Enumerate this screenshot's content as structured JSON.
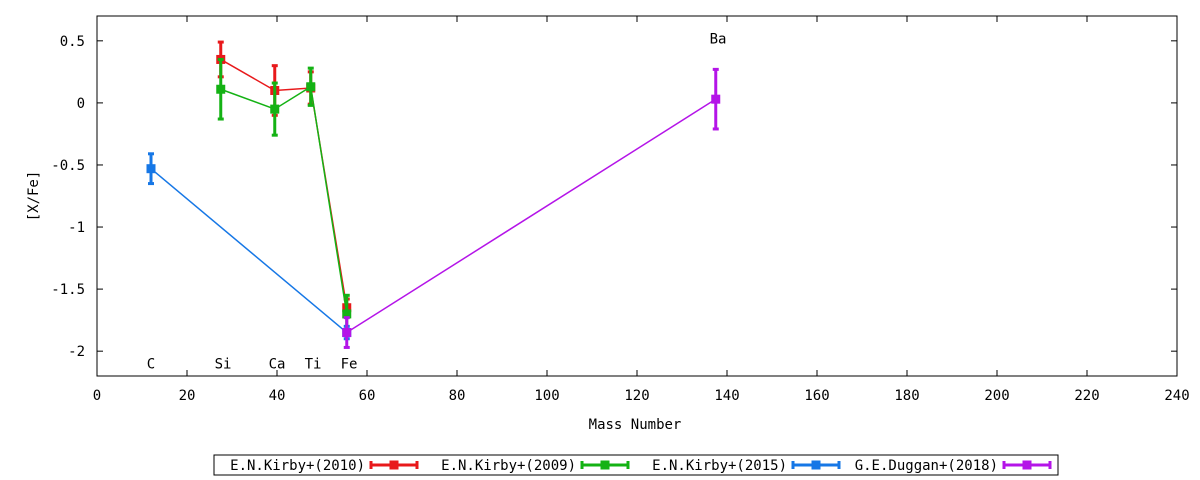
{
  "chart_data": {
    "type": "line",
    "xlabel": "Mass Number",
    "ylabel": "[X/Fe]",
    "xlim": [
      0,
      240
    ],
    "ylim": [
      -2.2,
      0.7
    ],
    "x_ticks": [
      0,
      20,
      40,
      60,
      80,
      100,
      120,
      140,
      160,
      180,
      200,
      220,
      240
    ],
    "y_ticks": [
      0.5,
      0,
      -0.5,
      -1,
      -1.5,
      -2
    ],
    "x_tick_labels": [
      "0",
      "20",
      "40",
      "60",
      "80",
      "100",
      "120",
      "140",
      "160",
      "180",
      "200",
      "220",
      "240"
    ],
    "y_tick_labels": [
      "0.5",
      "0",
      "-0.5",
      "-1",
      "-1.5",
      "-2"
    ],
    "grid": false,
    "legend_position": "bottom",
    "element_labels": [
      {
        "text": "C",
        "x": 12,
        "y": -2.1
      },
      {
        "text": "Si",
        "x": 28,
        "y": -2.1
      },
      {
        "text": "Ca",
        "x": 40,
        "y": -2.1
      },
      {
        "text": "Ti",
        "x": 48,
        "y": -2.1
      },
      {
        "text": "Fe",
        "x": 56,
        "y": -2.1
      },
      {
        "text": "Ba",
        "x": 138,
        "y": 0.52
      }
    ],
    "series": [
      {
        "name": "E.N.Kirby+(2010)",
        "color": "#e8191b",
        "points": [
          {
            "x": 27.5,
            "y": 0.35,
            "err": 0.14
          },
          {
            "x": 39.5,
            "y": 0.1,
            "err": 0.2
          },
          {
            "x": 47.5,
            "y": 0.12,
            "err": 0.13
          },
          {
            "x": 55.5,
            "y": -1.65,
            "err": 0.07
          }
        ]
      },
      {
        "name": "E.N.Kirby+(2009)",
        "color": "#14b214",
        "points": [
          {
            "x": 27.5,
            "y": 0.11,
            "err": 0.24
          },
          {
            "x": 39.5,
            "y": -0.05,
            "err": 0.21
          },
          {
            "x": 47.5,
            "y": 0.13,
            "err": 0.15
          },
          {
            "x": 55.5,
            "y": -1.7,
            "err": 0.15
          }
        ]
      },
      {
        "name": "E.N.Kirby+(2015)",
        "color": "#1677e6",
        "points": [
          {
            "x": 12,
            "y": -0.53,
            "err": 0.12
          },
          {
            "x": 55.5,
            "y": -1.85,
            "err": 0.05
          }
        ]
      },
      {
        "name": "G.E.Duggan+(2018)",
        "color": "#b414e8",
        "points": [
          {
            "x": 55.5,
            "y": -1.85,
            "err": 0.12
          },
          {
            "x": 137.5,
            "y": 0.03,
            "err": 0.24
          }
        ]
      }
    ]
  }
}
